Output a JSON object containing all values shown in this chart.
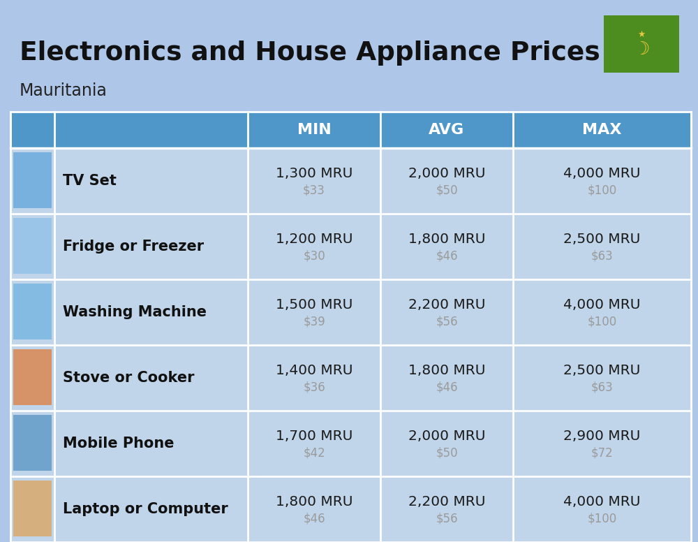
{
  "title": "Electronics and House Appliance Prices",
  "subtitle": "Mauritania",
  "background_color": "#aec6e8",
  "header_bg_color": "#4f97c9",
  "header_text_color": "#ffffff",
  "row_bg_color": "#c0d5ea",
  "row_alt_bg_color": "#b8cfe6",
  "item_name_color": "#111111",
  "mru_color": "#1a1a1a",
  "usd_color": "#9a9a9a",
  "columns": [
    "MIN",
    "AVG",
    "MAX"
  ],
  "rows": [
    {
      "name": "TV Set",
      "min_mru": "1,300 MRU",
      "min_usd": "$33",
      "avg_mru": "2,000 MRU",
      "avg_usd": "$50",
      "max_mru": "4,000 MRU",
      "max_usd": "$100"
    },
    {
      "name": "Fridge or Freezer",
      "min_mru": "1,200 MRU",
      "min_usd": "$30",
      "avg_mru": "1,800 MRU",
      "avg_usd": "$46",
      "max_mru": "2,500 MRU",
      "max_usd": "$63"
    },
    {
      "name": "Washing Machine",
      "min_mru": "1,500 MRU",
      "min_usd": "$39",
      "avg_mru": "2,200 MRU",
      "avg_usd": "$56",
      "max_mru": "4,000 MRU",
      "max_usd": "$100"
    },
    {
      "name": "Stove or Cooker",
      "min_mru": "1,400 MRU",
      "min_usd": "$36",
      "avg_mru": "1,800 MRU",
      "avg_usd": "$46",
      "max_mru": "2,500 MRU",
      "max_usd": "$63"
    },
    {
      "name": "Mobile Phone",
      "min_mru": "1,700 MRU",
      "min_usd": "$42",
      "avg_mru": "2,000 MRU",
      "avg_usd": "$50",
      "max_mru": "2,900 MRU",
      "max_usd": "$72"
    },
    {
      "name": "Laptop or Computer",
      "min_mru": "1,800 MRU",
      "min_usd": "$46",
      "avg_mru": "2,200 MRU",
      "avg_usd": "$56",
      "max_mru": "4,000 MRU",
      "max_usd": "$100"
    }
  ],
  "flag_green": "#4d8c1e",
  "flag_yellow": "#e8c840"
}
